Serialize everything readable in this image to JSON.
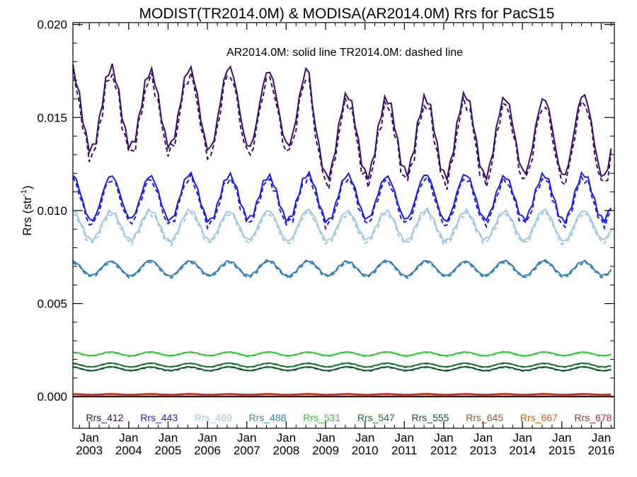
{
  "chart_data": {
    "type": "line",
    "title": "MODIST(TR2014.0M) & MODISA(AR2014.0M)  Rrs for PacS15",
    "subtitle": "AR2014.0M: solid line   TR2014.0M: dashed line",
    "ylabel": "Rrs (str",
    "ylabel_sup": "-1",
    "ylabel_close": ")",
    "ylim": [
      -0.0017,
      0.0201
    ],
    "yticks": [
      "0.000",
      "0.005",
      "0.010",
      "0.015",
      "0.020"
    ],
    "xlim": [
      "2002-08",
      "2016-05"
    ],
    "xticks": [
      {
        "top": "Jan",
        "bottom": "2003"
      },
      {
        "top": "Jan",
        "bottom": "2004"
      },
      {
        "top": "Jan",
        "bottom": "2005"
      },
      {
        "top": "Jan",
        "bottom": "2006"
      },
      {
        "top": "Jan",
        "bottom": "2007"
      },
      {
        "top": "Jan",
        "bottom": "2008"
      },
      {
        "top": "Jan",
        "bottom": "2009"
      },
      {
        "top": "Jan",
        "bottom": "2010"
      },
      {
        "top": "Jan",
        "bottom": "2011"
      },
      {
        "top": "Jan",
        "bottom": "2012"
      },
      {
        "top": "Jan",
        "bottom": "2013"
      },
      {
        "top": "Jan",
        "bottom": "2014"
      },
      {
        "top": "Jan",
        "bottom": "2015"
      },
      {
        "top": "Jan",
        "bottom": "2016"
      }
    ],
    "grid": false,
    "legend_position": "bottom",
    "series": [
      {
        "name": "Rrs_412",
        "color": "#3b0f70",
        "mean_2003_2008": 0.0155,
        "mean_2009_2016": 0.014,
        "amplitude": 0.0021
      },
      {
        "name": "Rrs_443",
        "color": "#1a1aff",
        "mean": 0.0107,
        "amplitude": 0.0012
      },
      {
        "name": "Rrs_469",
        "color": "#9ecae1",
        "mean": 0.0092,
        "amplitude": 0.0008
      },
      {
        "name": "Rrs_488",
        "color": "#3182bd",
        "mean": 0.0069,
        "amplitude": 0.0004
      },
      {
        "name": "Rrs_531",
        "color": "#2ecc2e",
        "mean": 0.0023,
        "amplitude": 0.0001
      },
      {
        "name": "Rrs_547",
        "color": "#1a7a2e",
        "mean": 0.0017,
        "amplitude": 0.0001
      },
      {
        "name": "Rrs_555",
        "color": "#0f5c2e",
        "mean": 0.0015,
        "amplitude": 0.0001
      },
      {
        "name": "Rrs_645",
        "color": "#a0522d",
        "mean": 0.00012,
        "amplitude": 2e-05
      },
      {
        "name": "Rrs_667",
        "color": "#e06010",
        "mean": 9e-05,
        "amplitude": 2e-05
      },
      {
        "name": "Rrs_678",
        "color": "#c0282a",
        "mean": 0.00013,
        "amplitude": 2e-05
      }
    ]
  }
}
